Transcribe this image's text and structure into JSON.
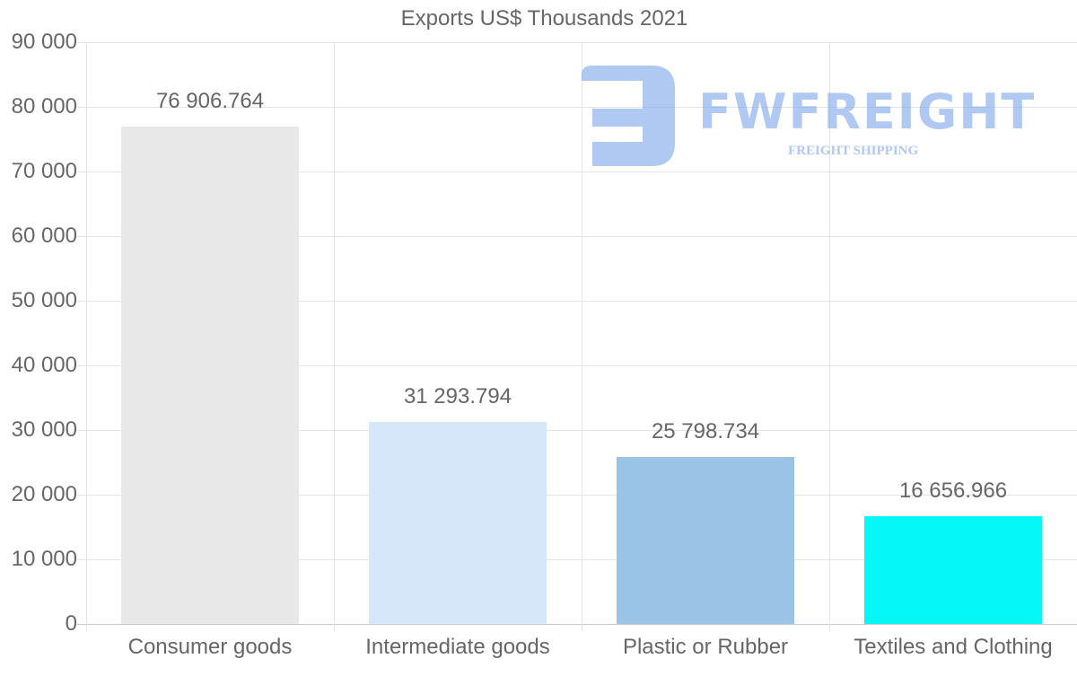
{
  "chart_data": {
    "type": "bar",
    "title": "Exports US$ Thousands 2021",
    "xlabel": "",
    "ylabel": "",
    "categories": [
      "Consumer goods",
      "Intermediate goods",
      "Plastic or Rubber",
      "Textiles and Clothing"
    ],
    "values": [
      76906.764,
      31293.794,
      25798.734,
      16656.966
    ],
    "value_labels": [
      "76 906.764",
      "31 293.794",
      "25 798.734",
      "16 656.966"
    ],
    "colors": [
      "#e8e8e8",
      "#d6e7f9",
      "#9bc3e6",
      "#05f7f7"
    ],
    "ylim": [
      0,
      90000
    ],
    "yticks": [
      "90 000",
      "80 000",
      "70 000",
      "60 000",
      "50 000",
      "40 000",
      "30 000",
      "20 000",
      "10 000",
      "0"
    ],
    "grid": true,
    "legend": "none"
  },
  "watermark": {
    "brand": "FWFREIGHT",
    "tagline": "FREIGHT SHIPPING",
    "color": "#709ce8"
  }
}
